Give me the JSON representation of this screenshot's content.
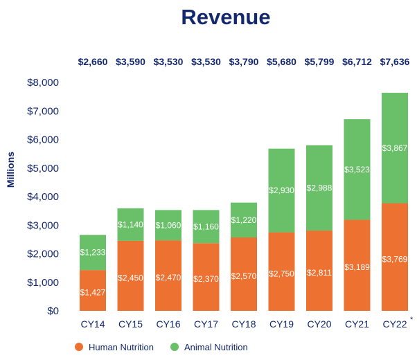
{
  "chart_data": {
    "type": "bar",
    "stacked": true,
    "title": "Revenue",
    "ylabel": "Millions",
    "xlabel": "",
    "ylim": [
      0,
      8000
    ],
    "yticks": [
      "$0",
      "$1,000",
      "$2,000",
      "$3,000",
      "$4,000",
      "$5,000",
      "$6,000",
      "$7,000",
      "$8,000"
    ],
    "ytick_values": [
      0,
      1000,
      2000,
      3000,
      4000,
      5000,
      6000,
      7000,
      8000
    ],
    "categories": [
      "CY14",
      "CY15",
      "CY16",
      "CY17",
      "CY18",
      "CY19",
      "CY20",
      "CY21",
      "CY22"
    ],
    "category_footnotes": [
      "",
      "",
      "",
      "",
      "",
      "",
      "",
      "",
      "*"
    ],
    "totals": [
      "$2,660",
      "$3,590",
      "$3,530",
      "$3,530",
      "$3,790",
      "$5,680",
      "$5,799",
      "$6,712",
      "$7,636"
    ],
    "series": [
      {
        "name": "Human Nutrition",
        "color": "#ed7131",
        "values": [
          1427,
          2450,
          2470,
          2370,
          2570,
          2750,
          2811,
          3189,
          3769
        ],
        "labels": [
          "$1,427",
          "$2,450",
          "$2,470",
          "$2,370",
          "$2,570",
          "$2,750",
          "$2,811",
          "$3,189",
          "$3,769"
        ]
      },
      {
        "name": "Animal Nutrition",
        "color": "#6abf69",
        "values": [
          1233,
          1140,
          1060,
          1160,
          1220,
          2930,
          2988,
          3523,
          3867
        ],
        "labels": [
          "$1,233",
          "$1,140",
          "$1,060",
          "$1,160",
          "$1,220",
          "$2,930",
          "$2,988",
          "$3,523",
          "$3,867"
        ]
      }
    ],
    "grid": false,
    "legend": "bottom-left"
  }
}
